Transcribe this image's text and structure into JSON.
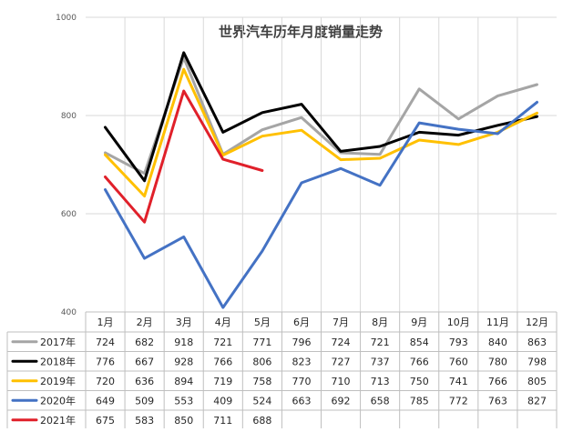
{
  "chart_data": {
    "type": "line",
    "title": "世界汽车历年月度销量走势",
    "categories": [
      "1月",
      "2月",
      "3月",
      "4月",
      "5月",
      "6月",
      "7月",
      "8月",
      "9月",
      "10月",
      "11月",
      "12月"
    ],
    "ylim": [
      400,
      1000
    ],
    "yticks": [
      400,
      600,
      800,
      1000
    ],
    "grid": true,
    "legend": "data-table-bottom",
    "series": [
      {
        "name": "2017年",
        "color": "#a5a5a5",
        "values": [
          724,
          682,
          918,
          721,
          771,
          796,
          724,
          721,
          854,
          793,
          840,
          863
        ]
      },
      {
        "name": "2018年",
        "color": "#000000",
        "values": [
          776,
          667,
          928,
          766,
          806,
          823,
          727,
          737,
          766,
          760,
          780,
          798
        ]
      },
      {
        "name": "2019年",
        "color": "#ffc000",
        "values": [
          720,
          636,
          894,
          719,
          758,
          770,
          710,
          713,
          750,
          741,
          766,
          805
        ]
      },
      {
        "name": "2020年",
        "color": "#4472c4",
        "values": [
          649,
          509,
          553,
          409,
          524,
          663,
          692,
          658,
          785,
          772,
          763,
          827
        ]
      },
      {
        "name": "2021年",
        "color": "#e0202a",
        "values": [
          675,
          583,
          850,
          711,
          688,
          null,
          null,
          null,
          null,
          null,
          null,
          null
        ]
      }
    ]
  }
}
